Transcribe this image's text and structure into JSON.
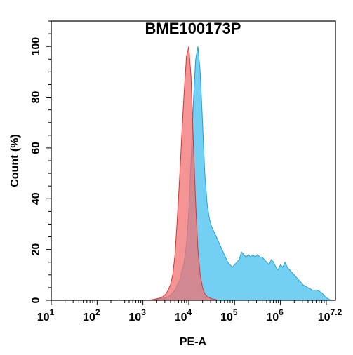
{
  "chart_data": {
    "type": "area",
    "title": "BME100173P",
    "xlabel": "PE-A",
    "ylabel": "Count  (%)",
    "xscale": "log",
    "xlim_log10": [
      1,
      7.2
    ],
    "ylim": [
      0,
      110
    ],
    "x_ticks": [
      {
        "base": "10",
        "exp": "1"
      },
      {
        "base": "10",
        "exp": "2"
      },
      {
        "base": "10",
        "exp": "3"
      },
      {
        "base": "10",
        "exp": "4"
      },
      {
        "base": "10",
        "exp": "5"
      },
      {
        "base": "10",
        "exp": "6"
      },
      {
        "base": "10",
        "exp": "7.2"
      }
    ],
    "y_ticks": [
      "0",
      "20",
      "40",
      "60",
      "80",
      "100"
    ],
    "grid": false,
    "series": [
      {
        "color": "#5bc8f0",
        "edge": "#1aa3d9",
        "log10_x": [
          3.0,
          3.3,
          3.5,
          3.6,
          3.7,
          3.8,
          3.9,
          3.95,
          4.0,
          4.05,
          4.1,
          4.15,
          4.2,
          4.25,
          4.3,
          4.35,
          4.4,
          4.45,
          4.5,
          4.55,
          4.6,
          4.65,
          4.7,
          4.75,
          4.8,
          4.85,
          4.9,
          4.95,
          5.0,
          5.05,
          5.1,
          5.15,
          5.2,
          5.25,
          5.3,
          5.35,
          5.4,
          5.45,
          5.5,
          5.55,
          5.6,
          5.65,
          5.7,
          5.75,
          5.8,
          5.85,
          5.9,
          5.95,
          6.0,
          6.05,
          6.1,
          6.15,
          6.2,
          6.25,
          6.3,
          6.35,
          6.4,
          6.45,
          6.5,
          6.6,
          6.7,
          6.8,
          6.9,
          7.0,
          7.1
        ],
        "y": [
          0,
          0.3,
          1,
          2,
          4,
          8,
          15,
          22,
          35,
          55,
          78,
          95,
          100,
          90,
          70,
          50,
          38,
          32,
          29,
          27,
          25,
          23,
          21,
          19,
          17,
          15,
          14,
          13,
          14,
          15,
          16,
          19,
          18,
          17,
          18,
          17,
          18,
          17,
          18,
          17,
          17,
          16,
          15,
          14,
          16,
          15,
          13,
          12,
          14,
          13,
          15,
          13,
          12,
          11,
          10,
          9,
          8,
          7,
          6,
          5,
          4,
          4,
          3,
          1,
          0
        ]
      },
      {
        "color": "#f07070",
        "edge": "#e03030",
        "log10_x": [
          3.0,
          3.2,
          3.4,
          3.5,
          3.55,
          3.6,
          3.65,
          3.7,
          3.75,
          3.8,
          3.85,
          3.9,
          3.95,
          4.0,
          4.05,
          4.1,
          4.15,
          4.2,
          4.25,
          4.3,
          4.35,
          4.4,
          4.5,
          4.6,
          4.8
        ],
        "y": [
          0,
          0.2,
          1,
          2.5,
          4,
          6,
          10,
          18,
          32,
          48,
          66,
          82,
          96,
          100,
          88,
          62,
          38,
          20,
          10,
          5,
          2.5,
          1.5,
          0.6,
          0.2,
          0
        ]
      }
    ]
  }
}
